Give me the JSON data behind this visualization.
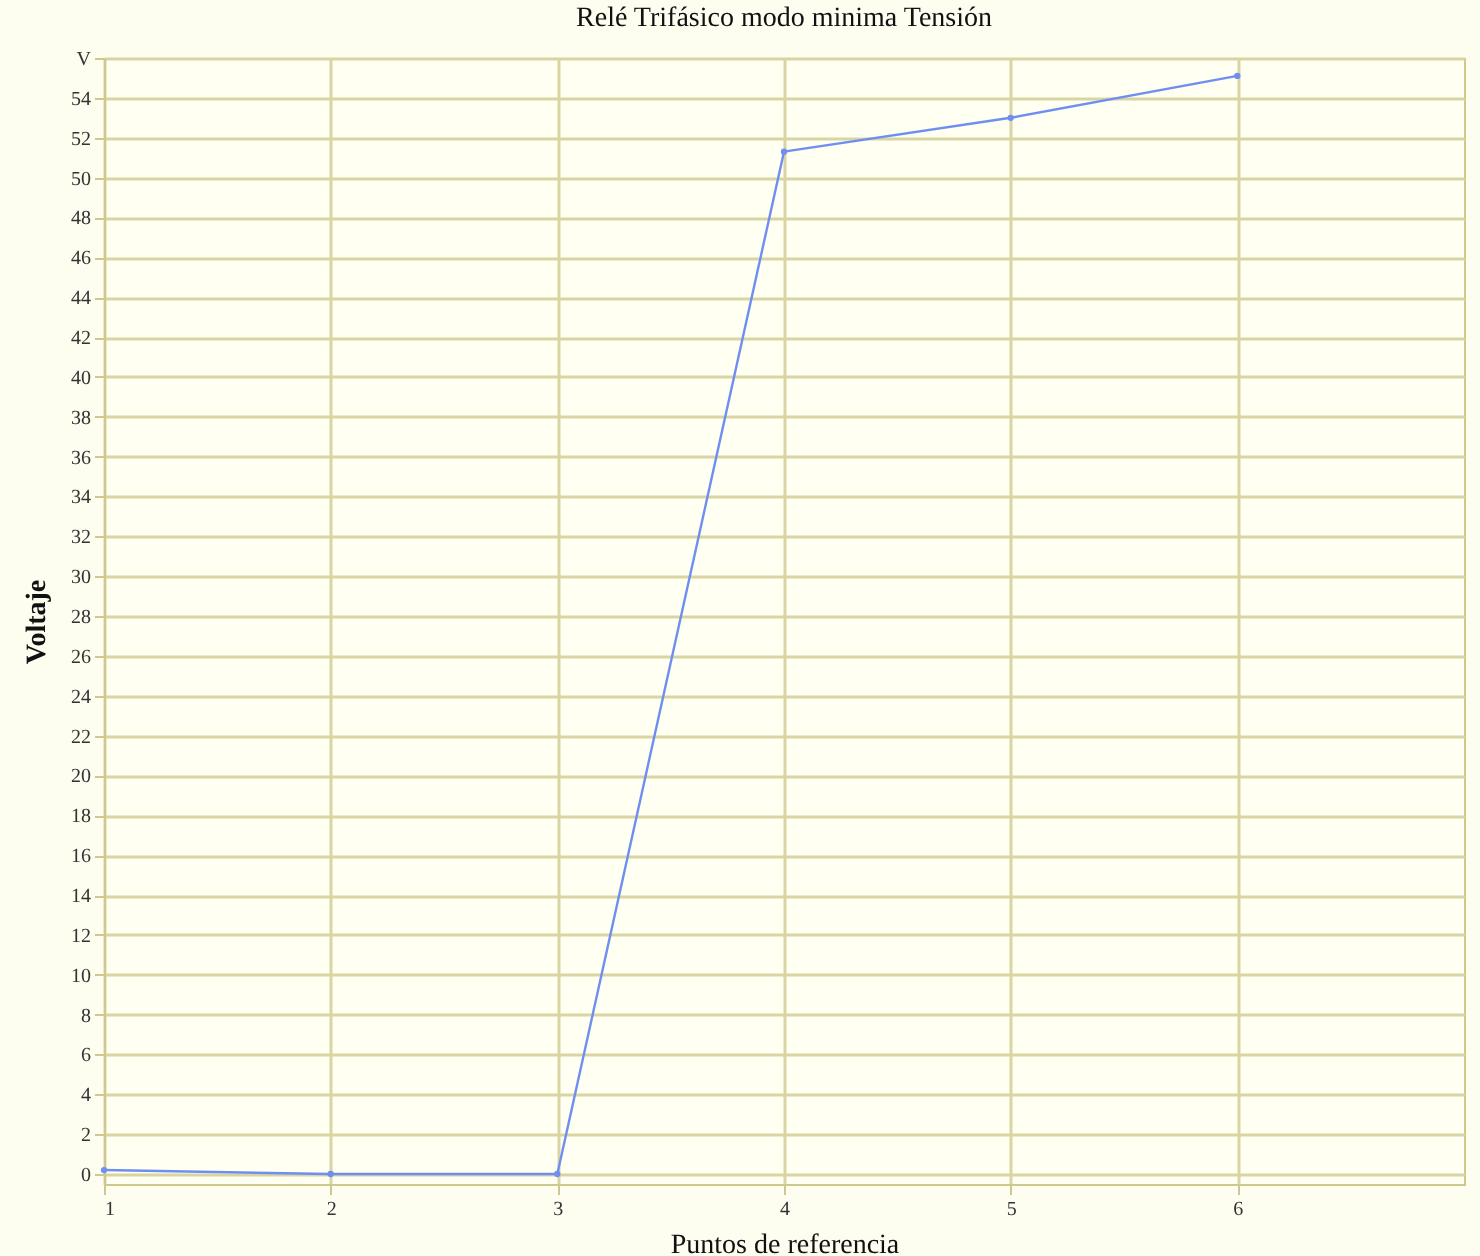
{
  "chart_data": {
    "type": "line",
    "title": "Relé Trifásico modo minima Tensión",
    "xlabel": "Puntos de referencia",
    "ylabel": "Voltaje",
    "x": [
      1,
      2,
      3,
      4,
      5,
      6
    ],
    "series": [
      {
        "color": "#6f8ff0",
        "values": [
          0.2,
          0,
          0,
          51.3,
          53.0,
          55.1
        ]
      }
    ],
    "xlim": [
      1,
      7
    ],
    "xticks": [
      1,
      2,
      3,
      4,
      5,
      6
    ],
    "ylim": [
      -0.5,
      56
    ],
    "yticks": [
      0,
      2,
      4,
      6,
      8,
      10,
      12,
      14,
      16,
      18,
      20,
      22,
      24,
      26,
      28,
      30,
      32,
      34,
      36,
      38,
      40,
      42,
      44,
      46,
      48,
      50,
      52,
      54,
      {
        "value": 56,
        "label": "V"
      }
    ],
    "grid": true,
    "marker": "circle",
    "line_style": "solid"
  }
}
